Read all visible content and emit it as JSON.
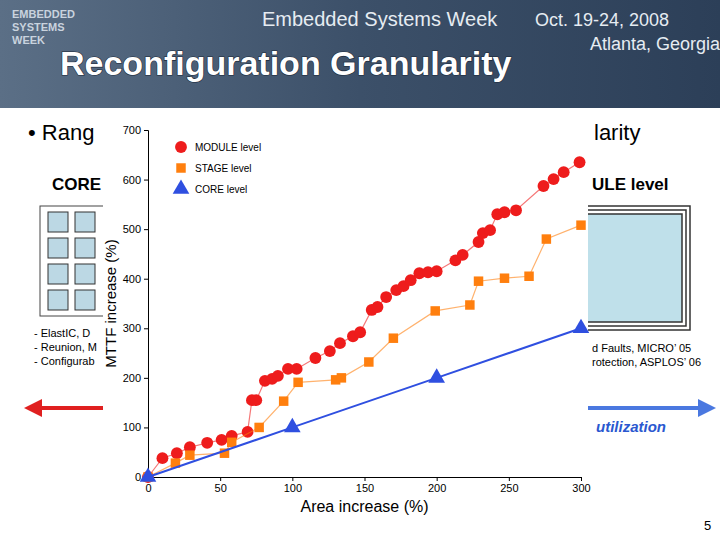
{
  "slide": {
    "header": {
      "logo": [
        "EMBEDDED",
        "SYSTEMS",
        "WEEK"
      ],
      "event": "Embedded Systems Week",
      "dates": "Oct. 19-24, 2008",
      "place": "Atlanta, Georgia"
    },
    "title": "Reconfiguration Granularity",
    "bullet": [
      "• Rang",
      "larity"
    ],
    "left_label": "CORE",
    "right_label": "ULE level",
    "left_refs": [
      "- ElastIC, D",
      "- Reunion, M",
      "- Configurab"
    ],
    "right_refs": [
      "d Faults, MICRO’ 05",
      "rotection, ASPLOS’ 06"
    ],
    "right_arrow_label": "utilization",
    "page": "5"
  },
  "chart_data": {
    "type": "scatter",
    "x_label": "Area increase (%)",
    "y_label": "MTTF increase (%)",
    "xlim": [
      0,
      300
    ],
    "xticks": [
      0,
      50,
      100,
      150,
      200,
      250,
      300
    ],
    "ylim": [
      0,
      700
    ],
    "yticks": [
      0,
      100,
      200,
      300,
      400,
      500,
      600,
      700
    ],
    "legend": "upper left",
    "series": [
      {
        "name": "MODULE level",
        "color": "#ee1c1c",
        "marker": "circle",
        "line_style": "solid",
        "x": [
          0,
          10,
          20,
          29,
          41,
          51,
          58,
          69,
          72,
          75,
          81,
          86,
          90,
          97,
          103,
          116,
          126,
          133,
          142,
          147,
          155,
          159,
          165,
          172,
          177,
          182,
          188,
          194,
          200,
          213,
          218,
          229,
          232,
          237,
          242,
          247,
          255,
          274,
          281,
          288,
          299
        ],
        "values": [
          0,
          38,
          48,
          60,
          69,
          75,
          83,
          91,
          155,
          155,
          194,
          198,
          204,
          218,
          218,
          240,
          254,
          270,
          284,
          292,
          337,
          343,
          363,
          377,
          385,
          397,
          411,
          413,
          415,
          437,
          448,
          474,
          492,
          498,
          530,
          534,
          538,
          587,
          601,
          615,
          635
        ]
      },
      {
        "name": "STAGE level",
        "color": "#ff7f0e",
        "marker": "square",
        "line_style": "solid",
        "x": [
          0,
          19,
          29,
          53,
          58,
          77,
          94,
          104,
          130,
          134,
          153,
          170,
          199,
          223,
          229,
          247,
          264,
          276,
          300
        ],
        "values": [
          0,
          28,
          44,
          48,
          70,
          100,
          153,
          191,
          196,
          200,
          232,
          280,
          335,
          347,
          395,
          401,
          405,
          480,
          508
        ]
      },
      {
        "name": "CORE level",
        "color": "#2f4fe0",
        "marker": "triangle",
        "line_style": "solid",
        "x": [
          0,
          100,
          200,
          300
        ],
        "values": [
          0,
          100,
          200,
          300
        ]
      }
    ]
  }
}
